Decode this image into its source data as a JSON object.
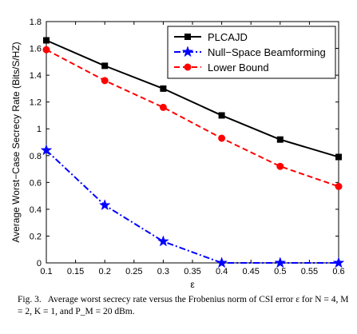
{
  "chart_data": {
    "type": "line",
    "xlabel": "ε",
    "ylabel": "Average Worst−Case Secrecy Rate (Bits/S/HZ)",
    "xlim": [
      0.1,
      0.6
    ],
    "ylim": [
      0,
      1.8
    ],
    "xticks": [
      0.1,
      0.15,
      0.2,
      0.25,
      0.3,
      0.35,
      0.4,
      0.45,
      0.5,
      0.55,
      0.6
    ],
    "yticks": [
      0,
      0.2,
      0.4,
      0.6,
      0.8,
      1,
      1.2,
      1.4,
      1.6,
      1.8
    ],
    "x": [
      0.1,
      0.2,
      0.3,
      0.4,
      0.5,
      0.6
    ],
    "legend_position": "top-right",
    "grid": false,
    "series": [
      {
        "name": "PLCAJD",
        "values": [
          1.66,
          1.47,
          1.3,
          1.1,
          0.92,
          0.79
        ],
        "color": "#000000",
        "style": "solid",
        "marker": "square"
      },
      {
        "name": "Null−Space Beamforming",
        "values": [
          0.84,
          0.43,
          0.16,
          0.0,
          0.0,
          0.0
        ],
        "color": "#0000ff",
        "style": "dashdot",
        "marker": "star"
      },
      {
        "name": "Lower Bound",
        "values": [
          1.59,
          1.36,
          1.16,
          0.93,
          0.72,
          0.57
        ],
        "color": "#ff0000",
        "style": "dashed",
        "marker": "circle"
      }
    ]
  },
  "caption": {
    "label": "Fig. 3.",
    "text": "Average worst secrecy rate versus the Frobenius norm of CSI error ε for N = 4, M = 2, K = 1, and P_M = 20 dBm."
  }
}
